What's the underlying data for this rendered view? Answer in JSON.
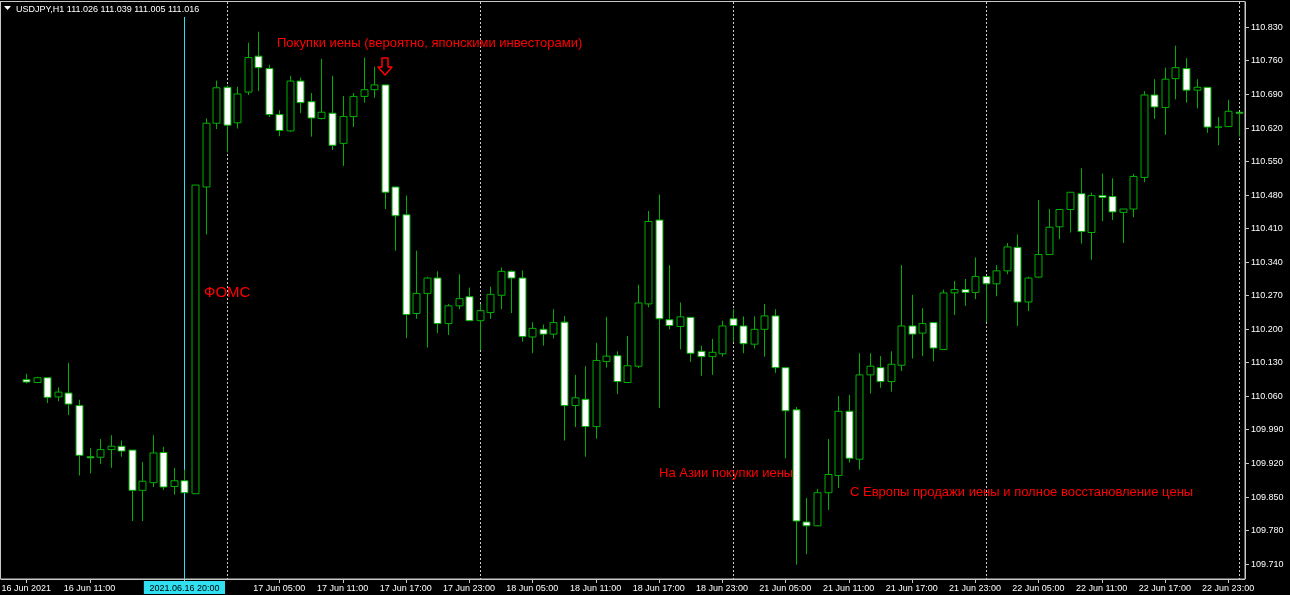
{
  "chart_data": {
    "type": "candlestick",
    "title": "USDJPY,H1 111.026 111.039 111.005 111.016",
    "categories": [
      "16 Jun 2021",
      null,
      null,
      null,
      null,
      null,
      "16 Jun 11:00",
      null,
      null,
      null,
      null,
      null,
      null,
      null,
      null,
      "2021.06.16 20:00",
      null,
      null,
      null,
      null,
      null,
      null,
      null,
      null,
      "17 Jun 05:00",
      null,
      null,
      null,
      null,
      null,
      "17 Jun 11:00",
      null,
      null,
      null,
      null,
      null,
      "17 Jun 17:00",
      null,
      null,
      null,
      null,
      null,
      "17 Jun 23:00",
      null,
      null,
      null,
      null,
      null,
      "18 Jun 05:00",
      null,
      null,
      null,
      null,
      null,
      "18 Jun 11:00",
      null,
      null,
      null,
      null,
      null,
      "18 Jun 17:00",
      null,
      null,
      null,
      null,
      null,
      "18 Jun 23:00",
      null,
      null,
      null,
      null,
      null,
      "21 Jun 05:00",
      null,
      null,
      null,
      null,
      null,
      "21 Jun 11:00",
      null,
      null,
      null,
      null,
      null,
      "21 Jun 17:00",
      null,
      null,
      null,
      null,
      null,
      "21 Jun 23:00",
      null,
      null,
      null,
      null,
      null,
      "22 Jun 05:00",
      null,
      null,
      null,
      null,
      null,
      "22 Jun 11:00",
      null,
      null,
      null,
      null,
      null,
      "22 Jun 17:00",
      null,
      null,
      null,
      null,
      null,
      "22 Jun 23:00",
      null
    ],
    "ohlc": [
      [
        110.094,
        110.106,
        110.086,
        110.089
      ],
      [
        110.088,
        110.1,
        110.087,
        110.098
      ],
      [
        110.098,
        110.098,
        110.045,
        110.057
      ],
      [
        110.058,
        110.078,
        110.049,
        110.068
      ],
      [
        110.066,
        110.129,
        110.02,
        110.043
      ],
      [
        110.04,
        110.052,
        109.894,
        109.936
      ],
      [
        109.933,
        109.951,
        109.898,
        109.931
      ],
      [
        109.932,
        109.97,
        109.918,
        109.948
      ],
      [
        109.948,
        109.978,
        109.91,
        109.955
      ],
      [
        109.955,
        109.967,
        109.933,
        109.945
      ],
      [
        109.947,
        109.947,
        109.799,
        109.863
      ],
      [
        109.863,
        109.922,
        109.799,
        109.882
      ],
      [
        109.879,
        109.978,
        109.87,
        109.941
      ],
      [
        109.942,
        109.954,
        109.864,
        109.87
      ],
      [
        109.871,
        109.91,
        109.854,
        109.883
      ],
      [
        109.883,
        109.906,
        109.858,
        109.858
      ],
      [
        109.856,
        110.5,
        109.856,
        110.5
      ],
      [
        110.496,
        110.639,
        110.397,
        110.629
      ],
      [
        110.629,
        110.718,
        110.617,
        110.703
      ],
      [
        110.704,
        110.708,
        110.568,
        110.625
      ],
      [
        110.63,
        110.705,
        110.618,
        110.69
      ],
      [
        110.694,
        110.797,
        110.688,
        110.766
      ],
      [
        110.769,
        110.82,
        110.696,
        110.745
      ],
      [
        110.743,
        110.751,
        110.642,
        110.647
      ],
      [
        110.647,
        110.656,
        110.602,
        110.614
      ],
      [
        110.613,
        110.728,
        110.611,
        110.717
      ],
      [
        110.717,
        110.724,
        110.65,
        110.672
      ],
      [
        110.674,
        110.692,
        110.601,
        110.64
      ],
      [
        110.639,
        110.763,
        110.637,
        110.652
      ],
      [
        110.65,
        110.728,
        110.573,
        110.583
      ],
      [
        110.587,
        110.686,
        110.54,
        110.643
      ],
      [
        110.643,
        110.692,
        110.621,
        110.685
      ],
      [
        110.685,
        110.766,
        110.672,
        110.699
      ],
      [
        110.699,
        110.747,
        110.682,
        110.709
      ],
      [
        110.709,
        110.709,
        110.45,
        110.485
      ],
      [
        110.496,
        110.496,
        110.363,
        110.436
      ],
      [
        110.438,
        110.478,
        110.181,
        110.23
      ],
      [
        110.232,
        110.363,
        110.221,
        110.274
      ],
      [
        110.274,
        110.308,
        110.161,
        110.306
      ],
      [
        110.306,
        110.32,
        110.191,
        110.211
      ],
      [
        110.211,
        110.252,
        110.187,
        110.248
      ],
      [
        110.248,
        110.314,
        110.241,
        110.263
      ],
      [
        110.267,
        110.286,
        110.217,
        110.217
      ],
      [
        110.217,
        110.252,
        110.156,
        110.238
      ],
      [
        110.234,
        110.288,
        110.221,
        110.272
      ],
      [
        110.27,
        110.328,
        110.241,
        110.32
      ],
      [
        110.32,
        110.322,
        110.233,
        110.306
      ],
      [
        110.306,
        110.322,
        110.173,
        110.184
      ],
      [
        110.183,
        110.214,
        110.149,
        110.201
      ],
      [
        110.199,
        110.209,
        110.165,
        110.189
      ],
      [
        110.189,
        110.241,
        110.18,
        110.213
      ],
      [
        110.214,
        110.227,
        109.967,
        110.04
      ],
      [
        110.04,
        110.104,
        109.995,
        110.056
      ],
      [
        110.053,
        110.122,
        109.933,
        109.996
      ],
      [
        109.996,
        110.171,
        109.971,
        110.134
      ],
      [
        110.132,
        110.225,
        110.119,
        110.143
      ],
      [
        110.144,
        110.153,
        110.064,
        110.09
      ],
      [
        110.088,
        110.185,
        110.088,
        110.123
      ],
      [
        110.122,
        110.292,
        110.118,
        110.254
      ],
      [
        110.252,
        110.446,
        110.245,
        110.424
      ],
      [
        110.427,
        110.48,
        110.035,
        110.221
      ],
      [
        110.219,
        110.333,
        110.199,
        110.207
      ],
      [
        110.205,
        110.255,
        110.157,
        110.225
      ],
      [
        110.224,
        110.224,
        110.131,
        110.149
      ],
      [
        110.153,
        110.165,
        110.102,
        110.142
      ],
      [
        110.142,
        110.179,
        110.104,
        110.151
      ],
      [
        110.148,
        110.217,
        110.142,
        110.206
      ],
      [
        110.221,
        110.241,
        110.173,
        110.207
      ],
      [
        110.206,
        110.226,
        110.149,
        110.169
      ],
      [
        110.168,
        110.226,
        110.159,
        110.199
      ],
      [
        110.199,
        110.252,
        110.142,
        110.227
      ],
      [
        110.227,
        110.241,
        110.108,
        110.119
      ],
      [
        110.119,
        110.119,
        109.93,
        110.029
      ],
      [
        110.031,
        110.037,
        109.708,
        109.799
      ],
      [
        109.797,
        109.847,
        109.73,
        109.789
      ],
      [
        109.789,
        109.866,
        109.788,
        109.858
      ],
      [
        109.858,
        109.97,
        109.822,
        109.896
      ],
      [
        109.894,
        110.06,
        109.868,
        110.028
      ],
      [
        110.028,
        110.062,
        109.921,
        109.93
      ],
      [
        109.928,
        110.149,
        109.906,
        110.104
      ],
      [
        110.104,
        110.149,
        110.065,
        110.122
      ],
      [
        110.119,
        110.143,
        110.077,
        110.09
      ],
      [
        110.09,
        110.153,
        110.069,
        110.126
      ],
      [
        110.124,
        110.333,
        110.112,
        110.206
      ],
      [
        110.206,
        110.271,
        110.138,
        110.189
      ],
      [
        110.191,
        110.243,
        110.143,
        110.211
      ],
      [
        110.213,
        110.213,
        110.132,
        110.16
      ],
      [
        110.157,
        110.282,
        110.156,
        110.275
      ],
      [
        110.275,
        110.3,
        110.229,
        110.282
      ],
      [
        110.282,
        110.304,
        110.248,
        110.276
      ],
      [
        110.276,
        110.349,
        110.262,
        110.309
      ],
      [
        110.309,
        110.309,
        110.214,
        110.294
      ],
      [
        110.294,
        110.333,
        110.268,
        110.321
      ],
      [
        110.321,
        110.379,
        110.314,
        110.371
      ],
      [
        110.37,
        110.397,
        110.206,
        110.256
      ],
      [
        110.256,
        110.309,
        110.237,
        110.306
      ],
      [
        110.308,
        110.469,
        110.306,
        110.355
      ],
      [
        110.355,
        110.45,
        110.354,
        110.412
      ],
      [
        110.413,
        110.45,
        110.387,
        110.449
      ],
      [
        110.449,
        110.485,
        110.401,
        110.485
      ],
      [
        110.482,
        110.535,
        110.378,
        110.403
      ],
      [
        110.401,
        110.484,
        110.344,
        110.478
      ],
      [
        110.478,
        110.524,
        110.425,
        110.474
      ],
      [
        110.476,
        110.514,
        110.427,
        110.444
      ],
      [
        110.443,
        110.45,
        110.379,
        110.45
      ],
      [
        110.45,
        110.523,
        110.433,
        110.518
      ],
      [
        110.516,
        110.696,
        110.506,
        110.688
      ],
      [
        110.688,
        110.721,
        110.638,
        110.663
      ],
      [
        110.662,
        110.745,
        110.605,
        110.721
      ],
      [
        110.722,
        110.791,
        110.679,
        110.745
      ],
      [
        110.743,
        110.765,
        110.672,
        110.698
      ],
      [
        110.698,
        110.721,
        110.66,
        110.704
      ],
      [
        110.704,
        110.704,
        110.609,
        110.621
      ],
      [
        110.621,
        110.642,
        110.583,
        110.621
      ],
      [
        110.622,
        110.678,
        110.621,
        110.654
      ],
      [
        110.652,
        110.652,
        110.601,
        110.65
      ]
    ],
    "colors": [
      "#ffffff",
      "#000000",
      "#ffffff",
      "#000000",
      "#ffffff",
      "#ffffff",
      "#ffffff",
      "#000000",
      "#000000",
      "#ffffff",
      "#ffffff",
      "#000000",
      "#000000",
      "#ffffff",
      "#000000",
      "#ffffff",
      "#000000",
      "#000000",
      "#000000",
      "#ffffff",
      "#000000",
      "#000000",
      "#ffffff",
      "#ffffff",
      "#ffffff",
      "#000000",
      "#ffffff",
      "#ffffff",
      "#000000",
      "#ffffff",
      "#000000",
      "#000000",
      "#000000",
      "#000000",
      "#ffffff",
      "#ffffff",
      "#ffffff",
      "#000000",
      "#000000",
      "#ffffff",
      "#000000",
      "#000000",
      "#ffffff",
      "#000000",
      "#000000",
      "#000000",
      "#ffffff",
      "#ffffff",
      "#000000",
      "#ffffff",
      "#000000",
      "#ffffff",
      "#000000",
      "#ffffff",
      "#000000",
      "#000000",
      "#ffffff",
      "#000000",
      "#000000",
      "#000000",
      "#ffffff",
      "#ffffff",
      "#000000",
      "#ffffff",
      "#ffffff",
      "#000000",
      "#000000",
      "#ffffff",
      "#ffffff",
      "#000000",
      "#000000",
      "#ffffff",
      "#ffffff",
      "#ffffff",
      "#ffffff",
      "#000000",
      "#000000",
      "#000000",
      "#ffffff",
      "#000000",
      "#000000",
      "#ffffff",
      "#000000",
      "#000000",
      "#ffffff",
      "#000000",
      "#ffffff",
      "#000000",
      "#000000",
      "#ffffff",
      "#000000",
      "#ffffff",
      "#000000",
      "#000000",
      "#ffffff",
      "#000000",
      "#000000",
      "#000000",
      "#000000",
      "#000000",
      "#ffffff",
      "#000000",
      "#ffffff",
      "#ffffff",
      "#000000",
      "#000000",
      "#000000",
      "#ffffff",
      "#000000",
      "#000000",
      "#ffffff",
      "#000000",
      "#ffffff",
      "#00b000",
      "#000000",
      "#ffffff"
    ],
    "color": "#00b000",
    "ylim": [
      109.678,
      110.882
    ],
    "yticks": [
      {
        "value": 109.71,
        "label": "109.710"
      },
      {
        "value": 109.78,
        "label": "109.780"
      },
      {
        "value": 109.85,
        "label": "109.850"
      },
      {
        "value": 109.92,
        "label": "109.920"
      },
      {
        "value": 109.99,
        "label": "109.990"
      },
      {
        "value": 110.06,
        "label": "110.060"
      },
      {
        "value": 110.13,
        "label": "110.130"
      },
      {
        "value": 110.2,
        "label": "110.200"
      },
      {
        "value": 110.27,
        "label": "110.270"
      },
      {
        "value": 110.34,
        "label": "110.340"
      },
      {
        "value": 110.41,
        "label": "110.410"
      },
      {
        "value": 110.48,
        "label": "110.480"
      },
      {
        "value": 110.55,
        "label": "110.550"
      },
      {
        "value": 110.62,
        "label": "110.620"
      },
      {
        "value": 110.69,
        "label": "110.690"
      },
      {
        "value": 110.76,
        "label": "110.760"
      },
      {
        "value": 110.83,
        "label": "110.830"
      }
    ],
    "grid": "x",
    "ref_lines": [
      {
        "axis": "x",
        "value": "2021.06.16 20:00",
        "color": "#30e0f0"
      }
    ],
    "annotations": [
      "Покупки иены (вероятно, японскими инвесторами)",
      "ФОМС",
      "На Азии покупки иены",
      "С Европы продажи иены и полное восстановление цены"
    ]
  }
}
